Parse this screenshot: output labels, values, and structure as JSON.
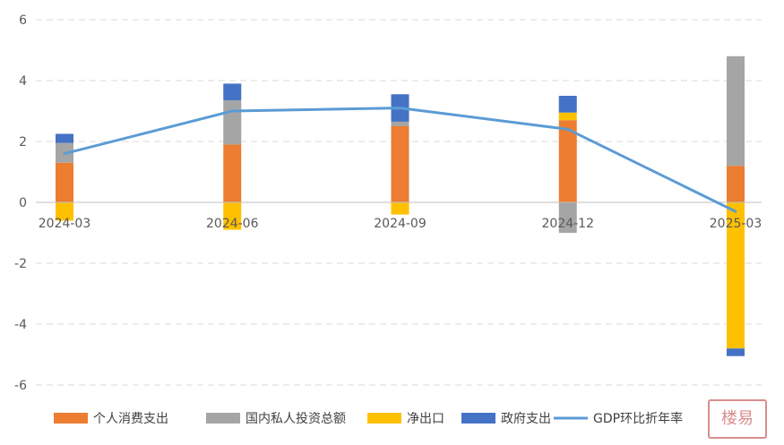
{
  "chart_data": {
    "type": "bar",
    "stacked": true,
    "categories": [
      "2024-03",
      "2024-06",
      "2024-09",
      "2024-12",
      "2025-03"
    ],
    "series": [
      {
        "name": "个人消费支出",
        "kind": "bar",
        "color": "#ED7D31",
        "values": [
          1.3,
          1.9,
          2.5,
          2.7,
          1.2
        ]
      },
      {
        "name": "国内私人投资总额",
        "kind": "bar",
        "color": "#A5A5A5",
        "values": [
          0.65,
          1.45,
          0.15,
          -1.0,
          3.6
        ]
      },
      {
        "name": "净出口",
        "kind": "bar",
        "color": "#FFC000",
        "values": [
          -0.6,
          -0.9,
          -0.4,
          0.25,
          -4.8
        ]
      },
      {
        "name": "政府支出",
        "kind": "bar",
        "color": "#4472C4",
        "values": [
          0.3,
          0.55,
          0.9,
          0.55,
          -0.25
        ]
      },
      {
        "name": "GDP环比折年率",
        "kind": "line",
        "color": "#5B9BD5",
        "values": [
          1.6,
          3.0,
          3.1,
          2.4,
          -0.3
        ]
      }
    ],
    "ylim": [
      -6,
      6
    ],
    "yticks": [
      "6",
      "4",
      "2",
      "0",
      "-2",
      "-4",
      "-6"
    ],
    "grid": true,
    "legend_position": "bottom"
  },
  "watermark": {
    "text": "楼易"
  }
}
